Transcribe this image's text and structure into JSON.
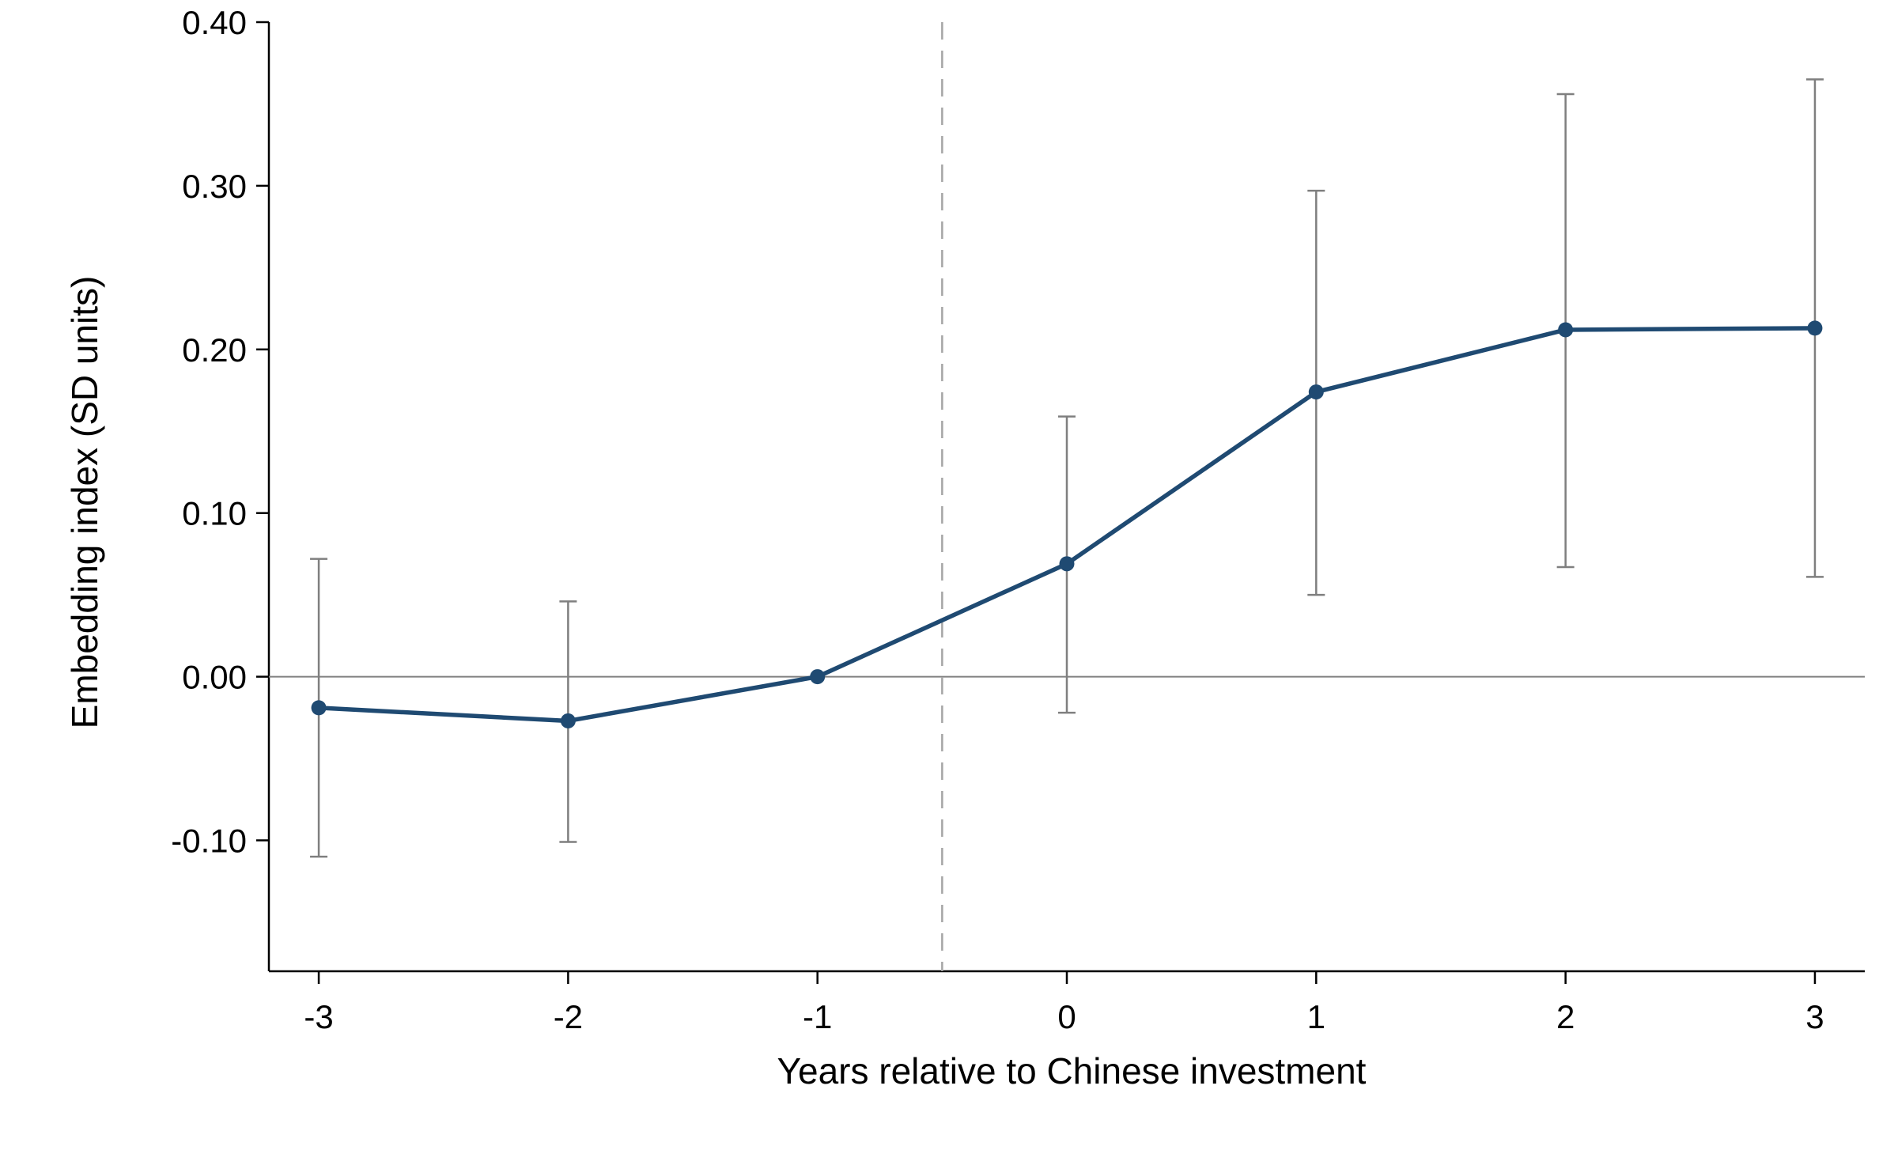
{
  "chart_data": {
    "type": "line",
    "title": "",
    "xlabel": "Years relative to Chinese investment",
    "ylabel": "Embedding index (SD units)",
    "x": [
      -3,
      -2,
      -1,
      0,
      1,
      2,
      3
    ],
    "x_tick_labels": [
      "-3",
      "-2",
      "-1",
      "0",
      "1",
      "2",
      "3"
    ],
    "y_ticks": [
      -0.1,
      0.0,
      0.1,
      0.2,
      0.3,
      0.4
    ],
    "y_tick_labels": [
      "-0.10",
      "0.00",
      "0.10",
      "0.20",
      "0.30",
      "0.40"
    ],
    "xlim": [
      -3.2,
      3.2
    ],
    "ylim": [
      -0.18,
      0.4
    ],
    "series": [
      {
        "values": [
          -0.019,
          -0.027,
          0.0,
          0.069,
          0.174,
          0.212,
          0.213
        ],
        "ci_low": [
          -0.11,
          -0.101,
          0.0,
          -0.022,
          0.05,
          0.067,
          0.061
        ],
        "ci_high": [
          0.072,
          0.046,
          0.0,
          0.159,
          0.297,
          0.356,
          0.365
        ]
      }
    ],
    "reference_lines": {
      "horizontal_y": 0.0,
      "vertical_dashed_x": -0.5
    },
    "grid": false,
    "colors": {
      "line": "#1f4a72",
      "marker": "#1f4a72",
      "error_bar": "#7f7f7f",
      "axis": "#000000",
      "zero_line": "#808080",
      "dashed_line": "#a6a6a6"
    }
  }
}
